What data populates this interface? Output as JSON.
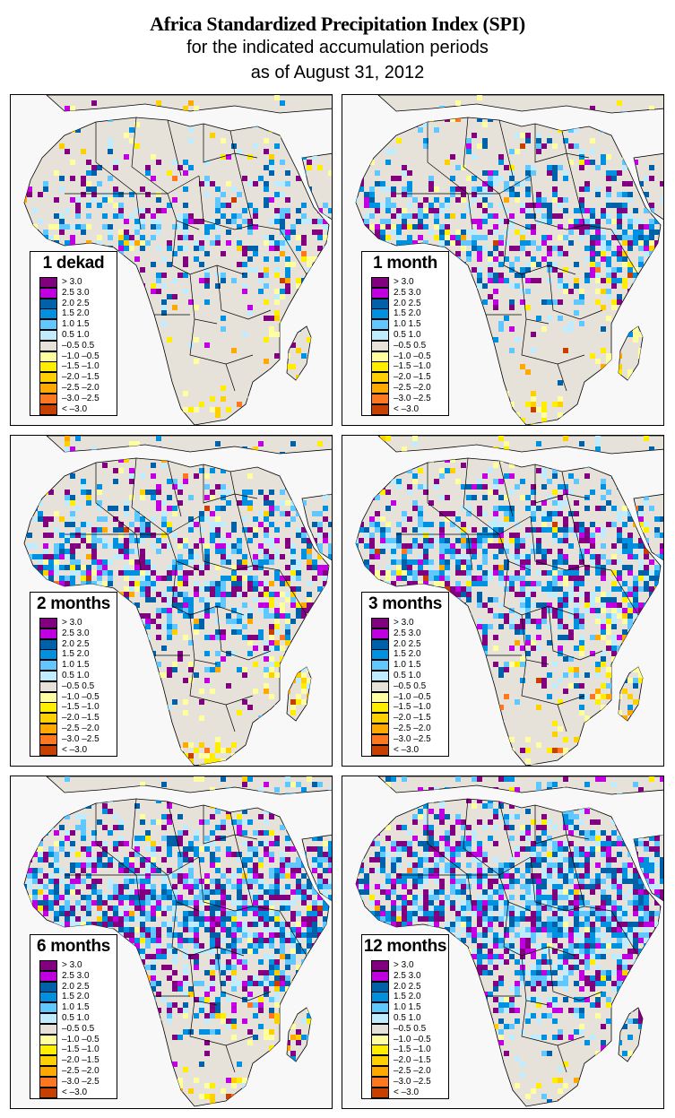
{
  "title": {
    "line1": "Africa Standardized Precipitation Index (SPI)",
    "line2": "for the indicated accumulation periods",
    "line3": "as of August 31, 2012"
  },
  "legend_classes": [
    {
      "label": "> 3.0",
      "color": "#800080"
    },
    {
      "label": "2.5  3.0",
      "color": "#c000e0"
    },
    {
      "label": "2.0  2.5",
      "color": "#0060a8"
    },
    {
      "label": "1.5  2.0",
      "color": "#0090e0"
    },
    {
      "label": "1.0  1.5",
      "color": "#60c8ff"
    },
    {
      "label": "0.5  1.0",
      "color": "#c0ecff"
    },
    {
      "label": "–0.5  0.5",
      "color": "#e6e2da"
    },
    {
      "label": "–1.0 –0.5",
      "color": "#ffffa0"
    },
    {
      "label": "–1.5 –1.0",
      "color": "#ffee00"
    },
    {
      "label": "–2.0 –1.5",
      "color": "#ffd000"
    },
    {
      "label": "–2.5 –2.0",
      "color": "#ffa800"
    },
    {
      "label": "–3.0 –2.5",
      "color": "#ff7820"
    },
    {
      "label": "< –3.0",
      "color": "#c84000"
    }
  ],
  "colors": {
    "ocean": "#f8f8f8",
    "land": "#e6e2da",
    "border": "#000000"
  },
  "panels": [
    {
      "period": "1 dekad",
      "wet_extent": 0.35,
      "dry_extent": 0.12
    },
    {
      "period": "1 month",
      "wet_extent": 0.45,
      "dry_extent": 0.15
    },
    {
      "period": "2 months",
      "wet_extent": 0.55,
      "dry_extent": 0.18
    },
    {
      "period": "3 months",
      "wet_extent": 0.58,
      "dry_extent": 0.18
    },
    {
      "period": "6 months",
      "wet_extent": 0.7,
      "dry_extent": 0.15
    },
    {
      "period": "12 months",
      "wet_extent": 0.8,
      "dry_extent": 0.08
    }
  ]
}
